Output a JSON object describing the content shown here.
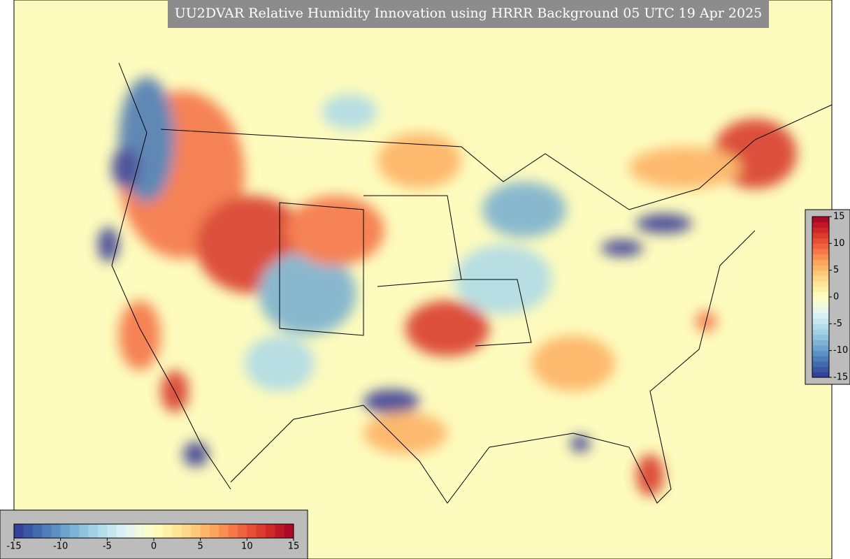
{
  "title": "UU2DVAR Relative Humidity Innovation using HRRR Background 05 UTC 19 Apr 2025",
  "colorbar": {
    "range": [
      -15,
      15
    ],
    "ticks": [
      -15,
      -10,
      -5,
      0,
      5,
      10,
      15
    ],
    "colors": [
      "#313695",
      "#4575b4",
      "#74add1",
      "#abd9e9",
      "#e0f3f8",
      "#ffffbf",
      "#fee090",
      "#fdae61",
      "#f46d43",
      "#d73027",
      "#a50026"
    ]
  }
}
